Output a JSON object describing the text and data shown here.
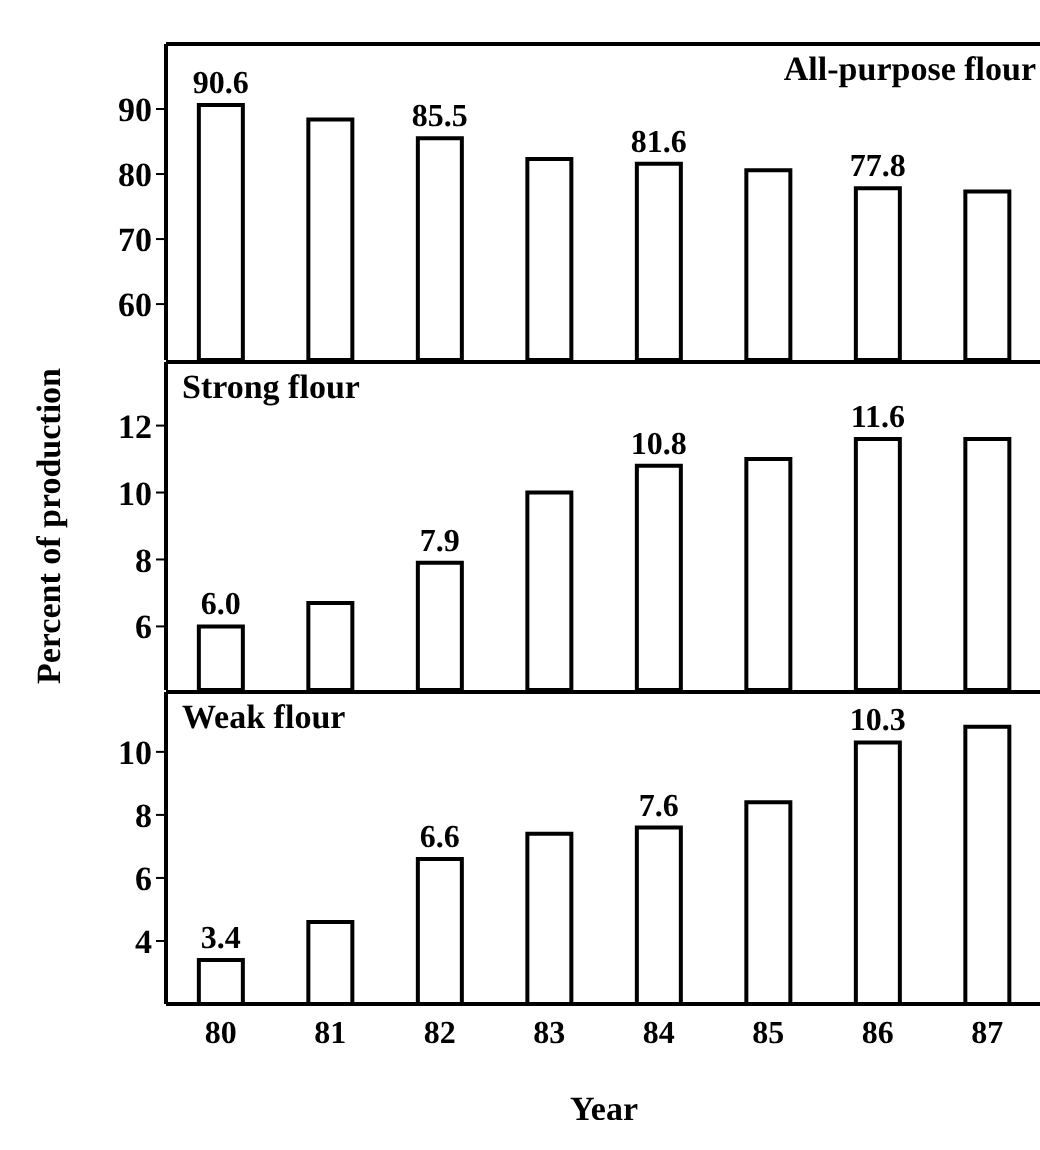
{
  "chart_data": [
    {
      "type": "bar",
      "title": "All-purpose flour",
      "categories": [
        "80",
        "81",
        "82",
        "83",
        "84",
        "85",
        "86",
        "87"
      ],
      "values": [
        90.6,
        88.4,
        85.5,
        82.3,
        81.6,
        80.6,
        77.8,
        77.3
      ],
      "color": "#ffffff",
      "value_labels": [
        "90.6",
        null,
        "85.5",
        null,
        "81.6",
        null,
        "77.8",
        null
      ],
      "ylim": [
        51.4,
        100
      ],
      "yticks": [
        60,
        70,
        80,
        90
      ],
      "tick_labels": "y"
    },
    {
      "type": "bar",
      "title": "Strong flour",
      "ylabel": "Percent of production",
      "categories": [
        "80",
        "81",
        "82",
        "83",
        "84",
        "85",
        "86",
        "87"
      ],
      "values": [
        6.0,
        6.7,
        7.9,
        10.0,
        10.8,
        11.0,
        11.6,
        11.6
      ],
      "color": "#ffffff",
      "value_labels": [
        "6.0",
        null,
        "7.9",
        null,
        "10.8",
        null,
        "11.6",
        null
      ],
      "ylim": [
        4.1,
        13.9
      ],
      "yticks": [
        6,
        8,
        10,
        12
      ],
      "tick_labels": "y"
    },
    {
      "type": "bar",
      "title": "Weak flour",
      "xlabel": "Year",
      "categories": [
        "80",
        "81",
        "82",
        "83",
        "84",
        "85",
        "86",
        "87"
      ],
      "values": [
        3.4,
        4.6,
        6.6,
        7.4,
        7.6,
        8.4,
        10.3,
        10.8
      ],
      "color": "#ffffff",
      "value_labels": [
        "3.4",
        null,
        "6.6",
        null,
        "7.6",
        null,
        "10.3",
        null
      ],
      "ylim": [
        2,
        11.9
      ],
      "yticks": [
        4,
        6,
        8,
        10
      ]
    }
  ]
}
